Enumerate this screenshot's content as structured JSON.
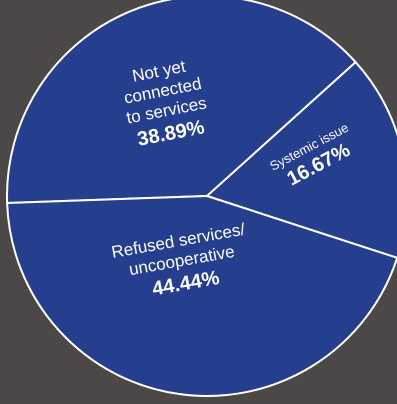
{
  "background": "#4c4848",
  "chart_data": {
    "type": "pie",
    "slice_color": "#253e8e",
    "border_color": "#ffffff",
    "slices": [
      {
        "name_lines": [
          "Not yet",
          "connected",
          "to services"
        ],
        "value": 38.89,
        "value_label": "38.89%"
      },
      {
        "name_lines": [
          "Systemic issue"
        ],
        "value": 16.67,
        "value_label": "16.67%"
      },
      {
        "name_lines": [
          "Refused services/",
          "uncooperative"
        ],
        "value": 44.44,
        "value_label": "44.44%"
      }
    ]
  }
}
